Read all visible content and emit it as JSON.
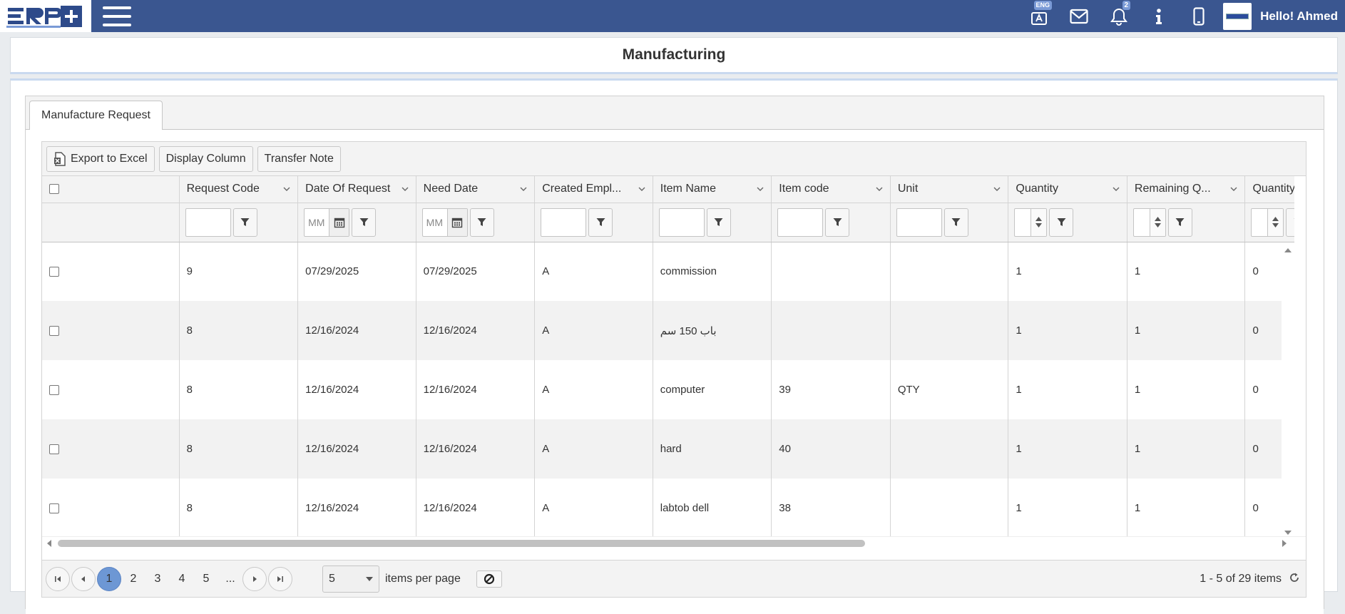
{
  "topbar": {
    "language_badge": "ENG",
    "notification_count": "2",
    "greeting": "Hello! Ahmed"
  },
  "page": {
    "title": "Manufacturing"
  },
  "tabs": [
    {
      "label": "Manufacture Request"
    }
  ],
  "toolbar": {
    "export_label": "Export to Excel",
    "display_column_label": "Display Column",
    "transfer_note_label": "Transfer Note"
  },
  "grid": {
    "columns": [
      "Request Code",
      "Date Of Request",
      "Need Date",
      "Created Empl...",
      "Item Name",
      "Item code",
      "Unit",
      "Quantity",
      "Remaining Q...",
      "Quantity Impl"
    ],
    "date_placeholder": "MM",
    "rows": [
      {
        "request_code": "9",
        "date_of_request": "07/29/2025",
        "need_date": "07/29/2025",
        "created_employee": "A",
        "item_name": "commission",
        "item_code": "",
        "unit": "",
        "quantity": "1",
        "remaining_quantity": "1",
        "quantity_implemented": "0"
      },
      {
        "request_code": "8",
        "date_of_request": "12/16/2024",
        "need_date": "12/16/2024",
        "created_employee": "A",
        "item_name": "باب 150 سم",
        "item_code": "",
        "unit": "",
        "quantity": "1",
        "remaining_quantity": "1",
        "quantity_implemented": "0"
      },
      {
        "request_code": "8",
        "date_of_request": "12/16/2024",
        "need_date": "12/16/2024",
        "created_employee": "A",
        "item_name": "computer",
        "item_code": "39",
        "unit": "QTY",
        "quantity": "1",
        "remaining_quantity": "1",
        "quantity_implemented": "0"
      },
      {
        "request_code": "8",
        "date_of_request": "12/16/2024",
        "need_date": "12/16/2024",
        "created_employee": "A",
        "item_name": "hard",
        "item_code": "40",
        "unit": "",
        "quantity": "1",
        "remaining_quantity": "1",
        "quantity_implemented": "0"
      },
      {
        "request_code": "8",
        "date_of_request": "12/16/2024",
        "need_date": "12/16/2024",
        "created_employee": "A",
        "item_name": "labtob dell",
        "item_code": "38",
        "unit": "",
        "quantity": "1",
        "remaining_quantity": "1",
        "quantity_implemented": "0"
      }
    ]
  },
  "pager": {
    "pages": [
      "1",
      "2",
      "3",
      "4",
      "5",
      "..."
    ],
    "current_page": "1",
    "page_size": "5",
    "items_per_page_label": "items per page",
    "info": "1 - 5 of 29 items"
  },
  "colors": {
    "topbar": "#3a5690",
    "active_page": "#6d97d4",
    "row_alt": "#f2f2f2"
  }
}
